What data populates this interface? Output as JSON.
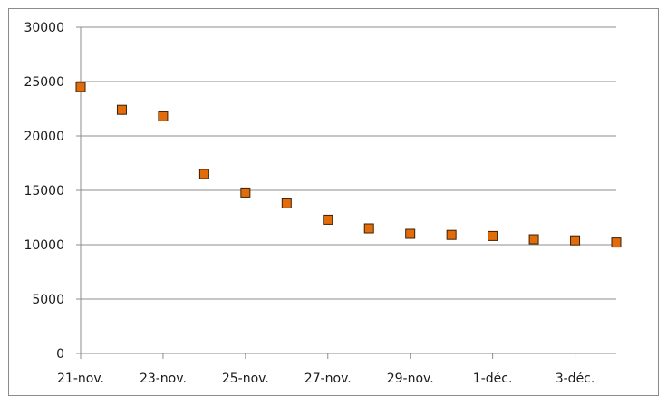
{
  "chart_data": {
    "type": "scatter",
    "title": "",
    "xlabel": "",
    "ylabel": "",
    "x_tick_labels": [
      "21-nov.",
      "23-nov.",
      "25-nov.",
      "27-nov.",
      "29-nov.",
      "1-déc.",
      "3-déc."
    ],
    "y_tick_labels": [
      "0",
      "5000",
      "10000",
      "15000",
      "20000",
      "25000",
      "30000"
    ],
    "ylim": [
      0,
      30000
    ],
    "x_dates": [
      "21-nov.",
      "22-nov.",
      "23-nov.",
      "24-nov.",
      "25-nov.",
      "26-nov.",
      "27-nov.",
      "28-nov.",
      "29-nov.",
      "30-nov.",
      "1-déc.",
      "2-déc.",
      "3-déc.",
      "4-déc."
    ],
    "values": [
      24500,
      22400,
      21800,
      16500,
      14800,
      13800,
      12300,
      11500,
      11000,
      10900,
      10800,
      10500,
      10400,
      10200
    ],
    "grid": true,
    "legend": "none",
    "marker_color": "#e36c0a",
    "marker_border": "#3b2006",
    "grid_color": "#8c8c8c"
  }
}
